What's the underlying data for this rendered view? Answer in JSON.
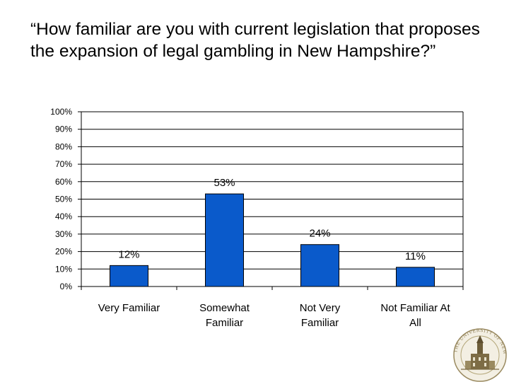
{
  "slide": {
    "title": "“How familiar are you with current legislation that proposes the expansion of legal gambling in New Hampshire?”"
  },
  "logo": {
    "text": "THE UNIVERSITY OF NEW HAMPSHIRE",
    "icon": "university-seal-icon",
    "color": "#9a8a60"
  },
  "chart_data": {
    "type": "bar",
    "categories": [
      "Very Familiar",
      "Somewhat Familiar",
      "Not Very Familiar",
      "Not Familiar At All"
    ],
    "category_lines": [
      [
        "Very Familiar"
      ],
      [
        "Somewhat",
        "Familiar"
      ],
      [
        "Not Very",
        "Familiar"
      ],
      [
        "Not Familiar At",
        "All"
      ]
    ],
    "values": [
      12,
      53,
      24,
      11
    ],
    "data_labels": [
      "12%",
      "53%",
      "24%",
      "11%"
    ],
    "y_ticks": [
      "0%",
      "10%",
      "20%",
      "30%",
      "40%",
      "50%",
      "60%",
      "70%",
      "80%",
      "90%",
      "100%"
    ],
    "ylim": [
      0,
      100
    ],
    "unit": "%",
    "grid": true,
    "legend": "none",
    "colors": {
      "bar": "#0a5acb",
      "bar_edge": "#000000",
      "grid": "#000000"
    }
  }
}
